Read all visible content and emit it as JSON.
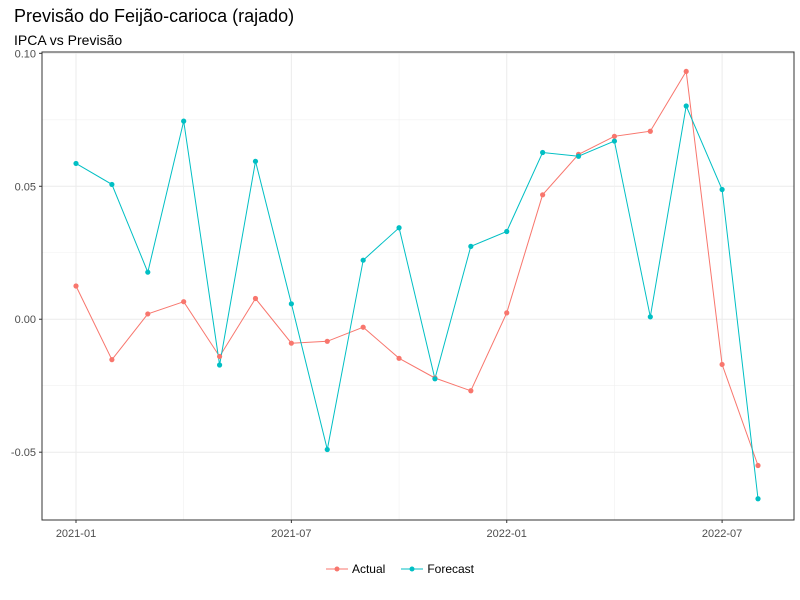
{
  "title": "Previsão do Feijão-carioca (rajado)",
  "subtitle": "IPCA vs Previsão",
  "chart_data": {
    "type": "line",
    "title": "Previsão do Feijão-carioca (rajado)",
    "subtitle": "IPCA vs Previsão",
    "xlabel": "",
    "ylabel": "",
    "x": [
      "2021-01",
      "2021-02",
      "2021-03",
      "2021-04",
      "2021-05",
      "2021-06",
      "2021-07",
      "2021-08",
      "2021-09",
      "2021-10",
      "2021-11",
      "2021-12",
      "2022-01",
      "2022-02",
      "2022-03",
      "2022-04",
      "2022-05",
      "2022-06",
      "2022-07",
      "2022-08"
    ],
    "x_ticks": [
      "2021-01",
      "2021-07",
      "2022-01",
      "2022-07"
    ],
    "y_ticks": [
      "-0.05",
      "0.00",
      "0.05",
      "0.10"
    ],
    "y_tick_values": [
      -0.05,
      0.0,
      0.05,
      0.1
    ],
    "ylim": [
      -0.0755,
      0.1005
    ],
    "grid": true,
    "legend_position": "bottom",
    "series": [
      {
        "name": "Actual",
        "color": "#F8766D",
        "values": [
          0.0125,
          -0.0152,
          0.002,
          0.0066,
          -0.014,
          0.0078,
          -0.009,
          -0.0083,
          -0.003,
          -0.0147,
          -0.0221,
          -0.0269,
          0.0024,
          0.0468,
          0.062,
          0.0688,
          0.0707,
          0.0932,
          -0.017,
          -0.055
        ]
      },
      {
        "name": "Forecast",
        "color": "#00BFC4",
        "values": [
          0.0586,
          0.0507,
          0.0177,
          0.0745,
          -0.0172,
          0.0594,
          0.0058,
          -0.049,
          0.0222,
          0.0344,
          -0.0224,
          0.0274,
          0.033,
          0.0627,
          0.0613,
          0.067,
          0.0009,
          0.0802,
          0.0488,
          -0.0675
        ]
      }
    ]
  }
}
